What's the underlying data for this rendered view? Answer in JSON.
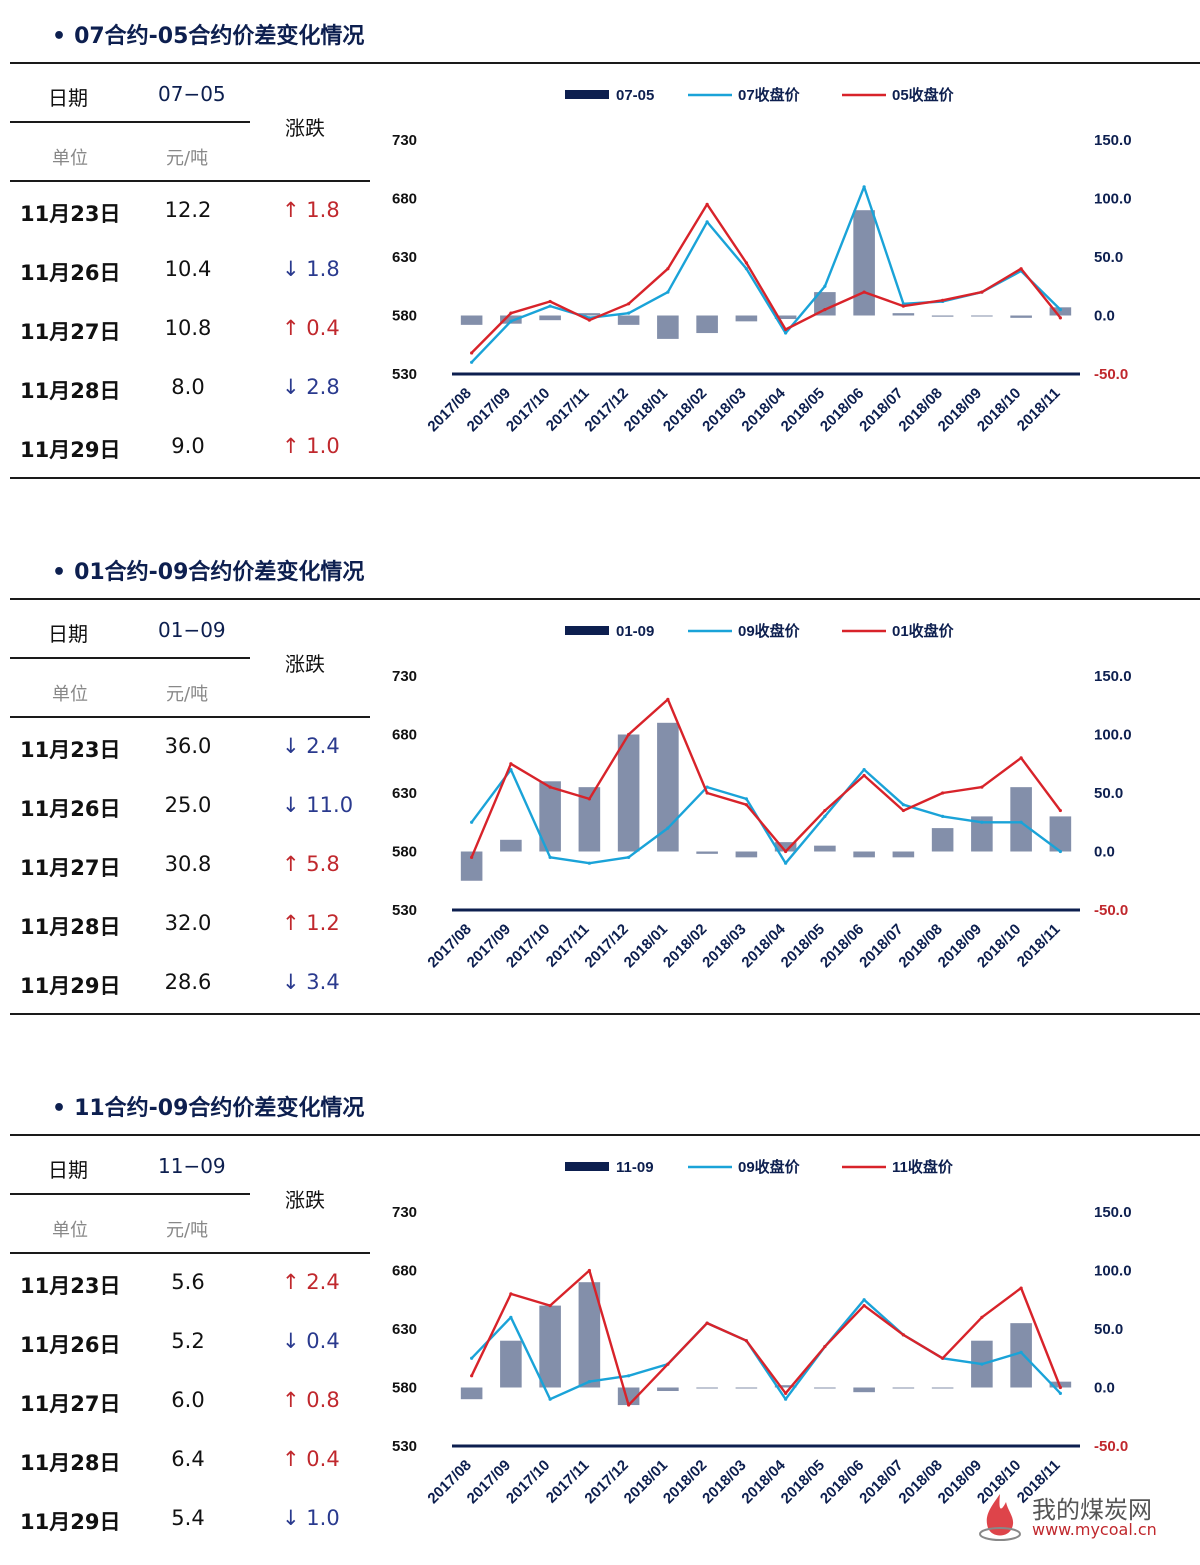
{
  "sections": [
    {
      "title": "07合约-05合约价差变化情况",
      "table": {
        "date_header": "日期",
        "col_header": "07−05",
        "change_header": "涨跌",
        "unit_label": "单位",
        "unit_value": "元/吨",
        "rows": [
          {
            "date": "11月23日",
            "value": "12.2",
            "arrow": "↑",
            "change": "1.8",
            "dir": "up"
          },
          {
            "date": "11月26日",
            "value": "10.4",
            "arrow": "↓",
            "change": "1.8",
            "dir": "down"
          },
          {
            "date": "11月27日",
            "value": "10.8",
            "arrow": "↑",
            "change": "0.4",
            "dir": "up"
          },
          {
            "date": "11月28日",
            "value": "8.0",
            "arrow": "↓",
            "change": "2.8",
            "dir": "down"
          },
          {
            "date": "11月29日",
            "value": "9.0",
            "arrow": "↑",
            "change": "1.0",
            "dir": "up"
          }
        ]
      }
    },
    {
      "title": "01合约-09合约价差变化情况",
      "table": {
        "date_header": "日期",
        "col_header": "01−09",
        "change_header": "涨跌",
        "unit_label": "单位",
        "unit_value": "元/吨",
        "rows": [
          {
            "date": "11月23日",
            "value": "36.0",
            "arrow": "↓",
            "change": "2.4",
            "dir": "down"
          },
          {
            "date": "11月26日",
            "value": "25.0",
            "arrow": "↓",
            "change": "11.0",
            "dir": "down"
          },
          {
            "date": "11月27日",
            "value": "30.8",
            "arrow": "↑",
            "change": "5.8",
            "dir": "up"
          },
          {
            "date": "11月28日",
            "value": "32.0",
            "arrow": "↑",
            "change": "1.2",
            "dir": "up"
          },
          {
            "date": "11月29日",
            "value": "28.6",
            "arrow": "↓",
            "change": "3.4",
            "dir": "down"
          }
        ]
      }
    },
    {
      "title": "11合约-09合约价差变化情况",
      "table": {
        "date_header": "日期",
        "col_header": "11−09",
        "change_header": "涨跌",
        "unit_label": "单位",
        "unit_value": "元/吨",
        "rows": [
          {
            "date": "11月23日",
            "value": "5.6",
            "arrow": "↑",
            "change": "2.4",
            "dir": "up"
          },
          {
            "date": "11月26日",
            "value": "5.2",
            "arrow": "↓",
            "change": "0.4",
            "dir": "down"
          },
          {
            "date": "11月27日",
            "value": "6.0",
            "arrow": "↑",
            "change": "0.8",
            "dir": "up"
          },
          {
            "date": "11月28日",
            "value": "6.4",
            "arrow": "↑",
            "change": "0.4",
            "dir": "up"
          },
          {
            "date": "11月29日",
            "value": "5.4",
            "arrow": "↓",
            "change": "1.0",
            "dir": "down"
          }
        ]
      }
    }
  ],
  "chart_data": [
    {
      "type": "bar+line",
      "legend": [
        "07-05",
        "07收盘价",
        "05收盘价"
      ],
      "colors": {
        "spread": "#0d1f4f",
        "line_a": "#1aa3d8",
        "line_b": "#d8232a"
      },
      "y_left": {
        "ylim": [
          530,
          730
        ],
        "ticks": [
          530,
          580,
          630,
          680,
          730
        ]
      },
      "y_right": {
        "ylim": [
          -50,
          150
        ],
        "ticks": [
          "-50.0",
          "0.0",
          "50.0",
          "100.0",
          "150.0"
        ]
      },
      "x": [
        "2017/08",
        "2017/09",
        "2017/10",
        "2017/11",
        "2017/12",
        "2018/01",
        "2018/02",
        "2018/03",
        "2018/04",
        "2018/05",
        "2018/06",
        "2018/07",
        "2018/08",
        "2018/09",
        "2018/10",
        "2018/11"
      ],
      "series": [
        {
          "name": "07收盘价",
          "values": [
            540,
            575,
            588,
            578,
            582,
            600,
            660,
            620,
            565,
            605,
            690,
            590,
            592,
            600,
            618,
            585
          ]
        },
        {
          "name": "05收盘价",
          "values": [
            548,
            582,
            592,
            576,
            590,
            620,
            675,
            625,
            568,
            585,
            600,
            588,
            593,
            600,
            620,
            578
          ]
        },
        {
          "name": "07-05",
          "values": [
            -8,
            -7,
            -4,
            2,
            -8,
            -20,
            -15,
            -5,
            -3,
            20,
            90,
            2,
            -1,
            0,
            -2,
            7
          ]
        }
      ]
    },
    {
      "type": "bar+line",
      "legend": [
        "01-09",
        "09收盘价",
        "01收盘价"
      ],
      "colors": {
        "spread": "#0d1f4f",
        "line_a": "#1aa3d8",
        "line_b": "#d8232a"
      },
      "y_left": {
        "ylim": [
          530,
          730
        ],
        "ticks": [
          530,
          580,
          630,
          680,
          730
        ]
      },
      "y_right": {
        "ylim": [
          -50,
          150
        ],
        "ticks": [
          "-50.0",
          "0.0",
          "50.0",
          "100.0",
          "150.0"
        ]
      },
      "x": [
        "2017/08",
        "2017/09",
        "2017/10",
        "2017/11",
        "2017/12",
        "2018/01",
        "2018/02",
        "2018/03",
        "2018/04",
        "2018/05",
        "2018/06",
        "2018/07",
        "2018/08",
        "2018/09",
        "2018/10",
        "2018/11"
      ],
      "series": [
        {
          "name": "09收盘价",
          "values": [
            605,
            650,
            575,
            570,
            575,
            600,
            635,
            625,
            570,
            610,
            650,
            620,
            610,
            605,
            605,
            580
          ]
        },
        {
          "name": "01收盘价",
          "values": [
            575,
            655,
            635,
            625,
            680,
            710,
            630,
            620,
            580,
            615,
            645,
            615,
            630,
            635,
            660,
            615
          ]
        },
        {
          "name": "01-09",
          "values": [
            -25,
            10,
            60,
            55,
            100,
            110,
            -2,
            -5,
            8,
            5,
            -5,
            -5,
            20,
            30,
            55,
            30
          ]
        }
      ]
    },
    {
      "type": "bar+line",
      "legend": [
        "11-09",
        "09收盘价",
        "11收盘价"
      ],
      "colors": {
        "spread": "#0d1f4f",
        "line_a": "#1aa3d8",
        "line_b": "#d8232a"
      },
      "y_left": {
        "ylim": [
          530,
          730
        ],
        "ticks": [
          530,
          580,
          630,
          680,
          730
        ]
      },
      "y_right": {
        "ylim": [
          -50,
          150
        ],
        "ticks": [
          "-50.0",
          "0.0",
          "50.0",
          "100.0",
          "150.0"
        ]
      },
      "x": [
        "2017/08",
        "2017/09",
        "2017/10",
        "2017/11",
        "2017/12",
        "2018/01",
        "2018/02",
        "2018/03",
        "2018/04",
        "2018/05",
        "2018/06",
        "2018/07",
        "2018/08",
        "2018/09",
        "2018/10",
        "2018/11"
      ],
      "series": [
        {
          "name": "09收盘价",
          "values": [
            605,
            640,
            570,
            585,
            590,
            600,
            635,
            620,
            570,
            615,
            655,
            625,
            605,
            600,
            610,
            575
          ]
        },
        {
          "name": "11收盘价",
          "values": [
            590,
            660,
            650,
            680,
            565,
            600,
            635,
            620,
            575,
            615,
            650,
            625,
            605,
            640,
            665,
            580
          ]
        },
        {
          "name": "11-09",
          "values": [
            -10,
            40,
            70,
            90,
            -15,
            -3,
            0,
            0,
            2,
            0,
            -4,
            0,
            0,
            40,
            55,
            5
          ]
        }
      ]
    }
  ],
  "watermark": {
    "name": "我的煤炭网",
    "url": "www.mycoal.cn"
  }
}
